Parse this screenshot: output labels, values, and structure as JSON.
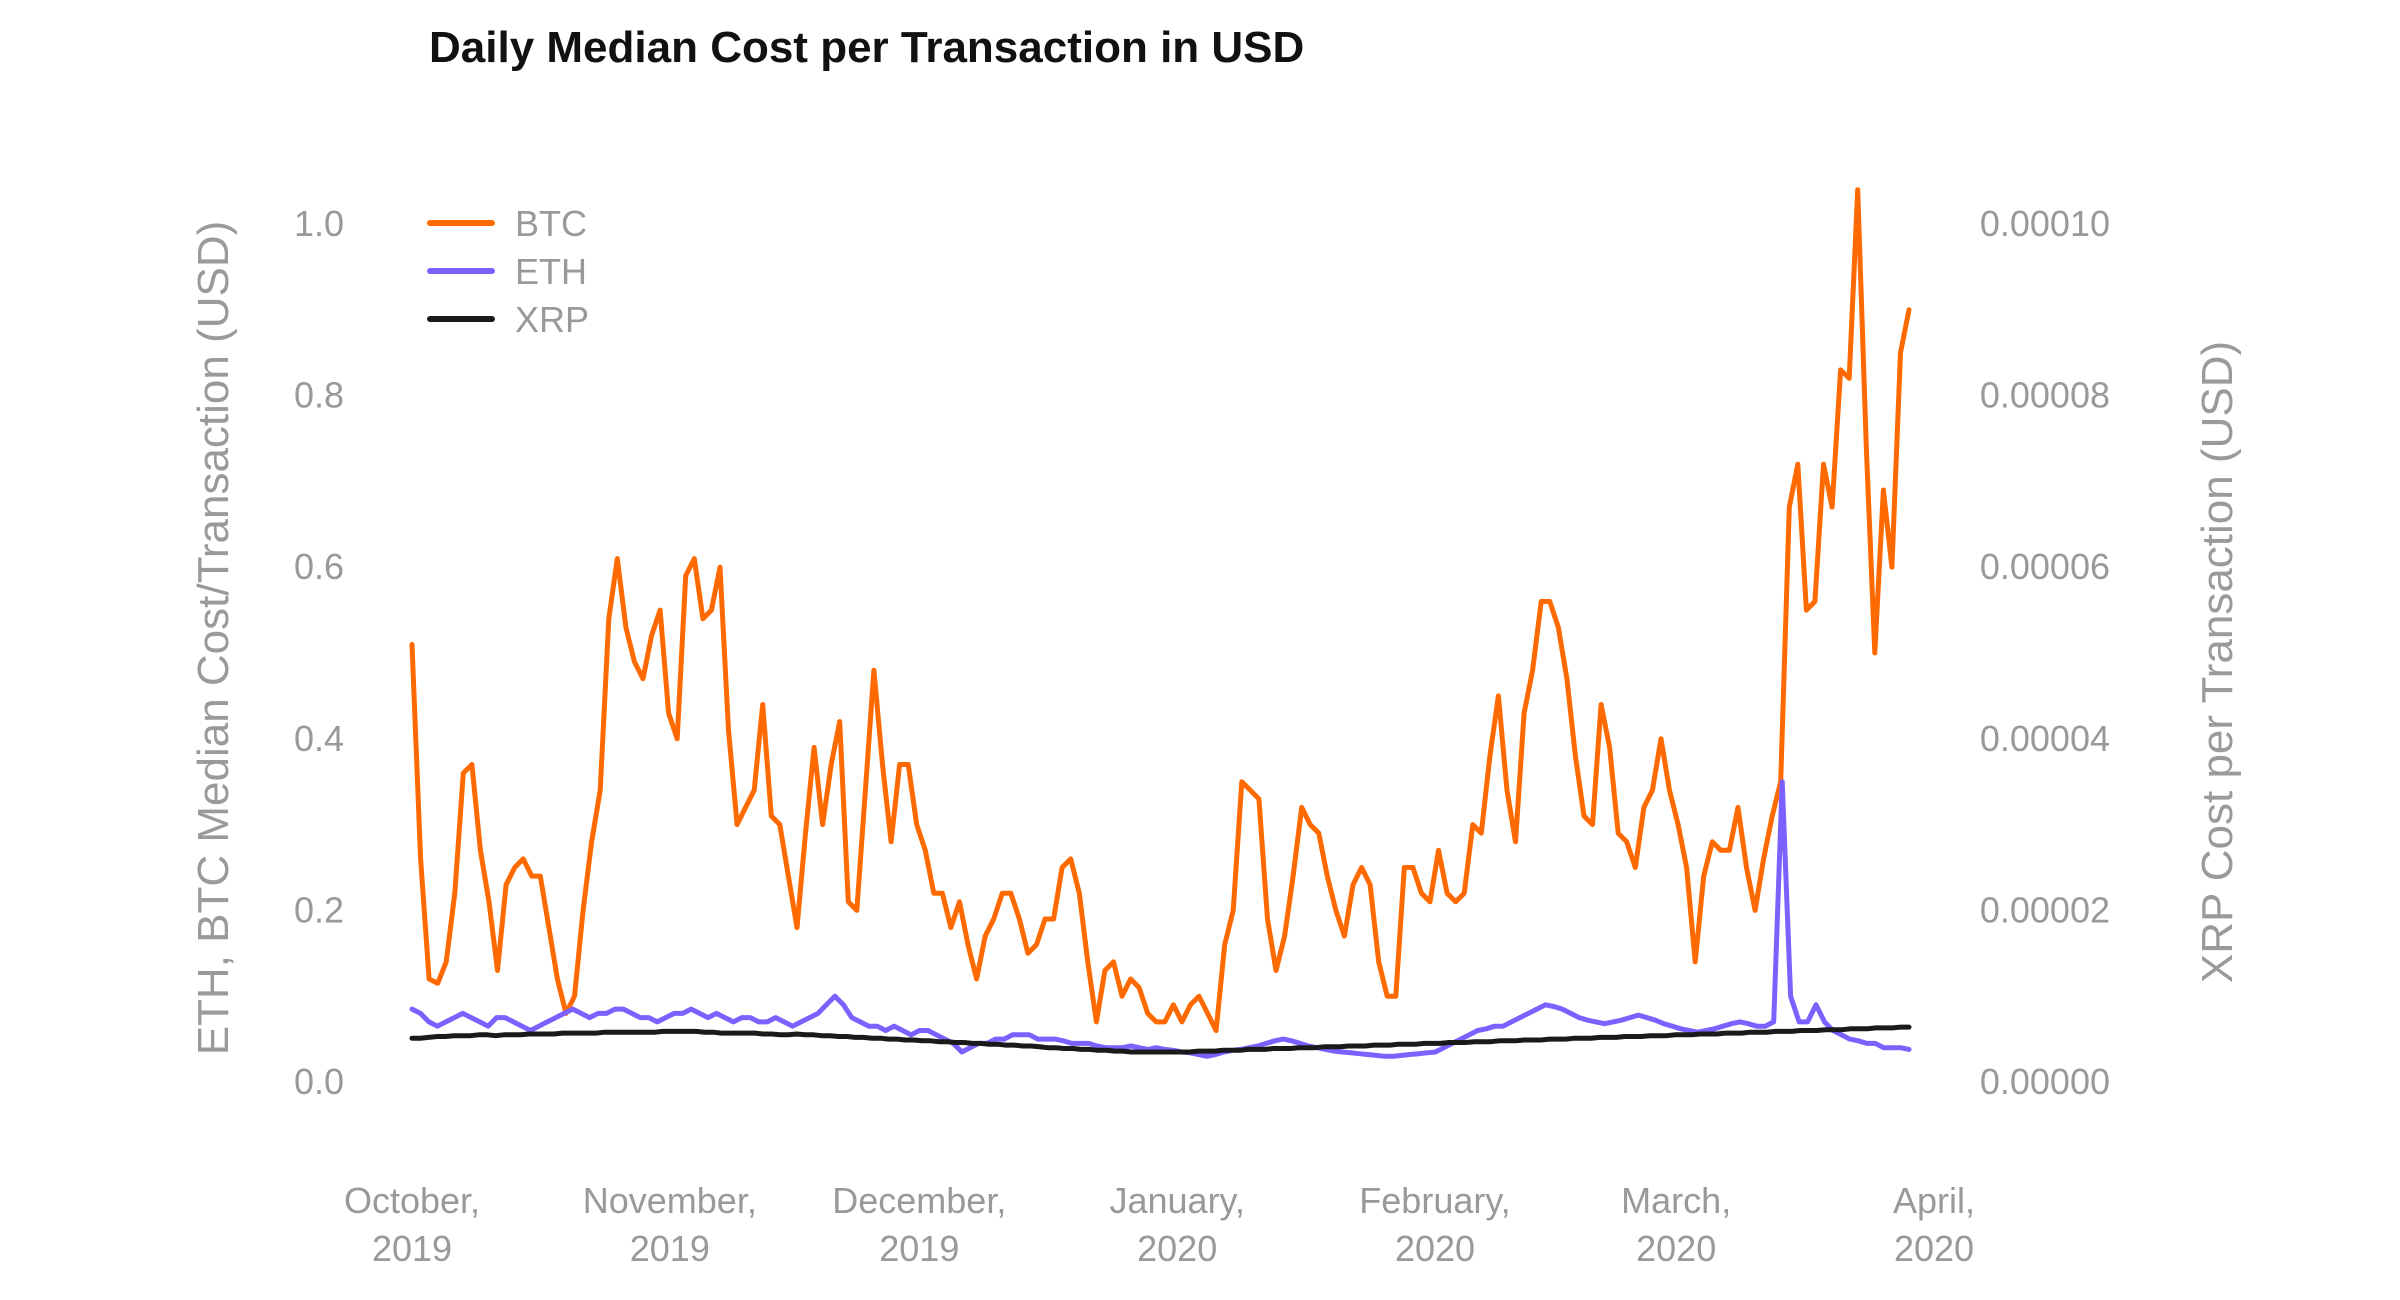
{
  "chart_data": {
    "type": "line",
    "title": "Daily Median Cost per Transaction in USD",
    "ylabel_left": "ETH, BTC Median Cost/Transaction (USD)",
    "ylabel_right": "XRP Cost per Transaction (USD)",
    "x_start": "2019-10-01",
    "x_end": "2020-03-29",
    "ylim_left": [
      0,
      1.0
    ],
    "ylim_right": [
      0,
      0.0001
    ],
    "left_ticks": [
      "0.0",
      "0.2",
      "0.4",
      "0.6",
      "0.8",
      "1.0"
    ],
    "right_ticks": [
      "0.00000",
      "0.00002",
      "0.00004",
      "0.00006",
      "0.00008",
      "0.00010"
    ],
    "x_ticks": [
      {
        "date": "2019-10-01",
        "line1": "October,",
        "line2": "2019"
      },
      {
        "date": "2019-11-01",
        "line1": "November,",
        "line2": "2019"
      },
      {
        "date": "2019-12-01",
        "line1": "December,",
        "line2": "2019"
      },
      {
        "date": "2020-01-01",
        "line1": "January,",
        "line2": "2020"
      },
      {
        "date": "2020-02-01",
        "line1": "February,",
        "line2": "2020"
      },
      {
        "date": "2020-03-01",
        "line1": "March,",
        "line2": "2020"
      },
      {
        "date": "2020-04-01",
        "line1": "April,",
        "line2": "2020"
      }
    ],
    "legend_position": "top-left",
    "grid": false,
    "series": [
      {
        "name": "BTC",
        "axis": "left",
        "color": "#ff6a00",
        "values": [
          0.51,
          0.26,
          0.12,
          0.115,
          0.14,
          0.22,
          0.36,
          0.37,
          0.27,
          0.21,
          0.13,
          0.23,
          0.25,
          0.26,
          0.24,
          0.24,
          0.18,
          0.12,
          0.08,
          0.1,
          0.2,
          0.28,
          0.34,
          0.54,
          0.61,
          0.53,
          0.49,
          0.47,
          0.52,
          0.55,
          0.43,
          0.4,
          0.59,
          0.61,
          0.54,
          0.55,
          0.6,
          0.41,
          0.3,
          0.32,
          0.34,
          0.44,
          0.31,
          0.3,
          0.24,
          0.18,
          0.29,
          0.39,
          0.3,
          0.37,
          0.42,
          0.21,
          0.2,
          0.34,
          0.48,
          0.37,
          0.28,
          0.37,
          0.37,
          0.3,
          0.27,
          0.22,
          0.22,
          0.18,
          0.21,
          0.16,
          0.12,
          0.17,
          0.19,
          0.22,
          0.22,
          0.19,
          0.15,
          0.16,
          0.19,
          0.19,
          0.25,
          0.26,
          0.22,
          0.14,
          0.07,
          0.13,
          0.14,
          0.1,
          0.12,
          0.11,
          0.08,
          0.07,
          0.07,
          0.09,
          0.07,
          0.09,
          0.1,
          0.08,
          0.06,
          0.16,
          0.2,
          0.35,
          0.34,
          0.33,
          0.19,
          0.13,
          0.17,
          0.24,
          0.32,
          0.3,
          0.29,
          0.24,
          0.2,
          0.17,
          0.23,
          0.25,
          0.23,
          0.14,
          0.1,
          0.1,
          0.25,
          0.25,
          0.22,
          0.21,
          0.27,
          0.22,
          0.21,
          0.22,
          0.3,
          0.29,
          0.38,
          0.45,
          0.34,
          0.28,
          0.43,
          0.48,
          0.56,
          0.56,
          0.53,
          0.47,
          0.38,
          0.31,
          0.3,
          0.44,
          0.39,
          0.29,
          0.28,
          0.25,
          0.32,
          0.34,
          0.4,
          0.34,
          0.3,
          0.25,
          0.14,
          0.24,
          0.28,
          0.27,
          0.27,
          0.32,
          0.25,
          0.2,
          0.26,
          0.31,
          0.35,
          0.67,
          0.72,
          0.55,
          0.56,
          0.72,
          0.67,
          0.83,
          0.82,
          1.04,
          0.74,
          0.5,
          0.69,
          0.6,
          0.85,
          0.9
        ]
      },
      {
        "name": "ETH",
        "axis": "left",
        "color": "#7b61ff",
        "values": [
          0.085,
          0.08,
          0.07,
          0.065,
          0.07,
          0.075,
          0.08,
          0.075,
          0.07,
          0.065,
          0.075,
          0.075,
          0.07,
          0.065,
          0.06,
          0.065,
          0.07,
          0.075,
          0.08,
          0.085,
          0.08,
          0.075,
          0.08,
          0.08,
          0.085,
          0.085,
          0.08,
          0.075,
          0.075,
          0.07,
          0.075,
          0.08,
          0.08,
          0.085,
          0.08,
          0.075,
          0.08,
          0.075,
          0.07,
          0.075,
          0.075,
          0.07,
          0.07,
          0.075,
          0.07,
          0.065,
          0.07,
          0.075,
          0.08,
          0.09,
          0.1,
          0.09,
          0.075,
          0.07,
          0.065,
          0.065,
          0.06,
          0.065,
          0.06,
          0.055,
          0.06,
          0.06,
          0.055,
          0.05,
          0.045,
          0.035,
          0.04,
          0.045,
          0.045,
          0.05,
          0.05,
          0.055,
          0.055,
          0.055,
          0.05,
          0.05,
          0.05,
          0.048,
          0.045,
          0.045,
          0.045,
          0.042,
          0.04,
          0.04,
          0.04,
          0.042,
          0.04,
          0.038,
          0.04,
          0.038,
          0.037,
          0.035,
          0.034,
          0.032,
          0.03,
          0.032,
          0.035,
          0.037,
          0.038,
          0.04,
          0.042,
          0.045,
          0.048,
          0.05,
          0.048,
          0.045,
          0.042,
          0.04,
          0.038,
          0.036,
          0.035,
          0.034,
          0.033,
          0.032,
          0.031,
          0.03,
          0.03,
          0.031,
          0.032,
          0.033,
          0.034,
          0.035,
          0.04,
          0.045,
          0.05,
          0.055,
          0.06,
          0.062,
          0.065,
          0.065,
          0.07,
          0.075,
          0.08,
          0.085,
          0.09,
          0.088,
          0.085,
          0.08,
          0.075,
          0.072,
          0.07,
          0.068,
          0.07,
          0.072,
          0.075,
          0.078,
          0.075,
          0.072,
          0.068,
          0.065,
          0.062,
          0.06,
          0.058,
          0.06,
          0.062,
          0.065,
          0.068,
          0.07,
          0.068,
          0.065,
          0.065,
          0.07,
          0.35,
          0.1,
          0.07,
          0.07,
          0.09,
          0.07,
          0.06,
          0.055,
          0.05,
          0.048,
          0.045,
          0.045,
          0.04,
          0.04,
          0.04,
          0.038
        ]
      },
      {
        "name": "XRP",
        "axis": "right",
        "color": "#1a1a1a",
        "values": [
          5.1e-06,
          5.1e-06,
          5.2e-06,
          5.3e-06,
          5.3e-06,
          5.4e-06,
          5.4e-06,
          5.4e-06,
          5.5e-06,
          5.5e-06,
          5.4e-06,
          5.5e-06,
          5.5e-06,
          5.5e-06,
          5.6e-06,
          5.6e-06,
          5.6e-06,
          5.6e-06,
          5.7e-06,
          5.7e-06,
          5.7e-06,
          5.7e-06,
          5.7e-06,
          5.8e-06,
          5.8e-06,
          5.8e-06,
          5.8e-06,
          5.8e-06,
          5.8e-06,
          5.8e-06,
          5.9e-06,
          5.9e-06,
          5.9e-06,
          5.9e-06,
          5.9e-06,
          5.8e-06,
          5.8e-06,
          5.7e-06,
          5.7e-06,
          5.7e-06,
          5.7e-06,
          5.7e-06,
          5.6e-06,
          5.6e-06,
          5.5e-06,
          5.5e-06,
          5.6e-06,
          5.5e-06,
          5.5e-06,
          5.4e-06,
          5.4e-06,
          5.3e-06,
          5.3e-06,
          5.2e-06,
          5.2e-06,
          5.1e-06,
          5.1e-06,
          5e-06,
          5e-06,
          4.9e-06,
          4.9e-06,
          4.8e-06,
          4.8e-06,
          4.7e-06,
          4.7e-06,
          4.6e-06,
          4.6e-06,
          4.5e-06,
          4.5e-06,
          4.4e-06,
          4.4e-06,
          4.3e-06,
          4.3e-06,
          4.2e-06,
          4.2e-06,
          4.1e-06,
          4e-06,
          4e-06,
          3.9e-06,
          3.9e-06,
          3.8e-06,
          3.8e-06,
          3.7e-06,
          3.7e-06,
          3.6e-06,
          3.6e-06,
          3.5e-06,
          3.5e-06,
          3.5e-06,
          3.5e-06,
          3.5e-06,
          3.5e-06,
          3.5e-06,
          3.5e-06,
          3.6e-06,
          3.6e-06,
          3.6e-06,
          3.7e-06,
          3.7e-06,
          3.7e-06,
          3.8e-06,
          3.8e-06,
          3.8e-06,
          3.9e-06,
          3.9e-06,
          3.9e-06,
          4e-06,
          4e-06,
          4e-06,
          4.1e-06,
          4.1e-06,
          4.1e-06,
          4.2e-06,
          4.2e-06,
          4.2e-06,
          4.3e-06,
          4.3e-06,
          4.3e-06,
          4.4e-06,
          4.4e-06,
          4.4e-06,
          4.5e-06,
          4.5e-06,
          4.5e-06,
          4.6e-06,
          4.6e-06,
          4.6e-06,
          4.7e-06,
          4.7e-06,
          4.7e-06,
          4.8e-06,
          4.8e-06,
          4.8e-06,
          4.9e-06,
          4.9e-06,
          4.9e-06,
          5e-06,
          5e-06,
          5e-06,
          5.1e-06,
          5.1e-06,
          5.1e-06,
          5.2e-06,
          5.2e-06,
          5.2e-06,
          5.3e-06,
          5.3e-06,
          5.3e-06,
          5.4e-06,
          5.4e-06,
          5.4e-06,
          5.5e-06,
          5.5e-06,
          5.5e-06,
          5.6e-06,
          5.6e-06,
          5.6e-06,
          5.7e-06,
          5.7e-06,
          5.7e-06,
          5.8e-06,
          5.8e-06,
          5.8e-06,
          5.9e-06,
          5.9e-06,
          5.9e-06,
          6e-06,
          6e-06,
          6e-06,
          6.1e-06,
          6.1e-06,
          6.1e-06,
          6.2e-06,
          6.2e-06,
          6.2e-06,
          6.3e-06,
          6.3e-06,
          6.3e-06,
          6.4e-06,
          6.4e-06
        ]
      }
    ]
  }
}
